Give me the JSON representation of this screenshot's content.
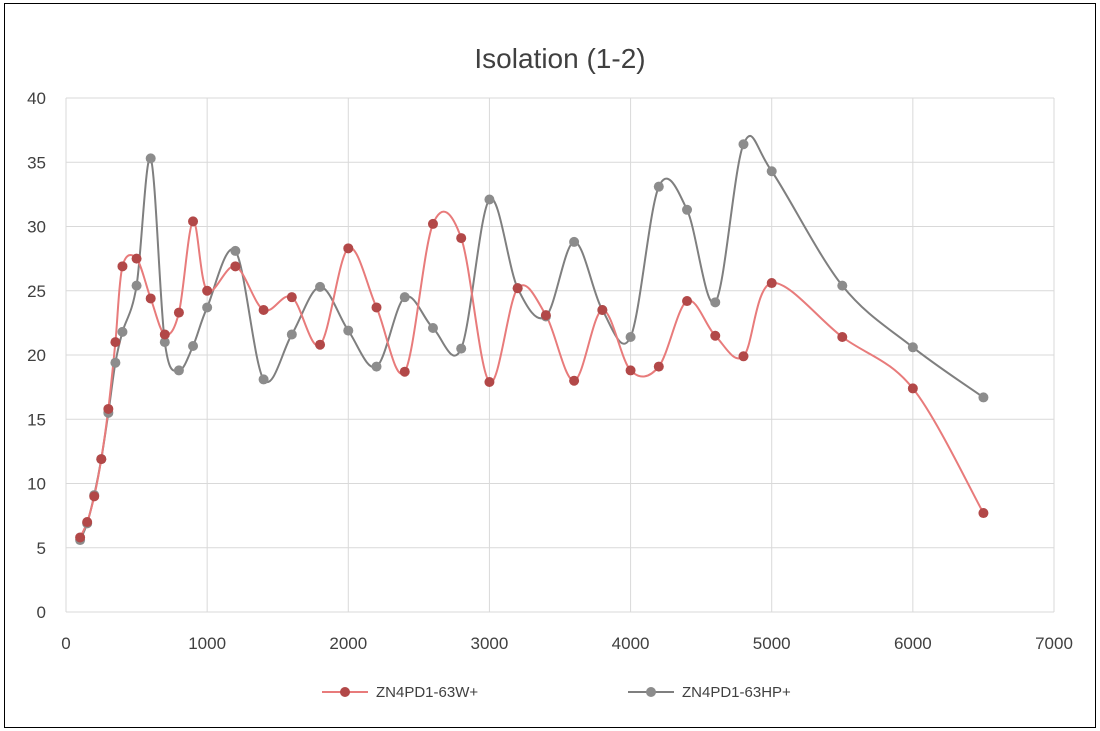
{
  "chart_data": {
    "type": "scatter",
    "title": "Isolation (1-2)",
    "xlabel": "",
    "ylabel": "",
    "xlim": [
      0,
      7000
    ],
    "ylim": [
      0,
      40
    ],
    "x_ticks": [
      0,
      1000,
      2000,
      3000,
      4000,
      5000,
      6000,
      7000
    ],
    "y_ticks": [
      0,
      5,
      10,
      15,
      20,
      25,
      30,
      35,
      40
    ],
    "grid": true,
    "legend_position": "bottom",
    "smooth_lines": true,
    "series": [
      {
        "name": "ZN4PD1-63W+",
        "color": "#e87b7b",
        "marker_color": "#b24848",
        "points": [
          [
            100,
            5.8
          ],
          [
            150,
            7.0
          ],
          [
            200,
            9.0
          ],
          [
            250,
            11.9
          ],
          [
            300,
            15.8
          ],
          [
            350,
            21.0
          ],
          [
            400,
            26.9
          ],
          [
            500,
            27.5
          ],
          [
            600,
            24.4
          ],
          [
            700,
            21.6
          ],
          [
            800,
            23.3
          ],
          [
            900,
            30.4
          ],
          [
            1000,
            25.0
          ],
          [
            1200,
            26.9
          ],
          [
            1400,
            23.5
          ],
          [
            1600,
            24.5
          ],
          [
            1800,
            20.8
          ],
          [
            2000,
            28.3
          ],
          [
            2200,
            23.7
          ],
          [
            2400,
            18.7
          ],
          [
            2600,
            30.2
          ],
          [
            2800,
            29.1
          ],
          [
            3000,
            17.9
          ],
          [
            3200,
            25.2
          ],
          [
            3400,
            23.1
          ],
          [
            3600,
            18.0
          ],
          [
            3800,
            23.5
          ],
          [
            4000,
            18.8
          ],
          [
            4200,
            19.1
          ],
          [
            4400,
            24.2
          ],
          [
            4600,
            21.5
          ],
          [
            4800,
            19.9
          ],
          [
            5000,
            25.6
          ],
          [
            5500,
            21.4
          ],
          [
            6000,
            17.4
          ],
          [
            6500,
            7.7
          ]
        ]
      },
      {
        "name": "ZN4PD1-63HP+",
        "color": "#7f7f7f",
        "marker_color": "#8c8c8c",
        "points": [
          [
            100,
            5.6
          ],
          [
            150,
            6.9
          ],
          [
            200,
            9.1
          ],
          [
            250,
            11.9
          ],
          [
            300,
            15.5
          ],
          [
            350,
            19.4
          ],
          [
            400,
            21.8
          ],
          [
            500,
            25.4
          ],
          [
            600,
            35.3
          ],
          [
            700,
            21.0
          ],
          [
            800,
            18.8
          ],
          [
            900,
            20.7
          ],
          [
            1000,
            23.7
          ],
          [
            1200,
            28.1
          ],
          [
            1400,
            18.1
          ],
          [
            1600,
            21.6
          ],
          [
            1800,
            25.3
          ],
          [
            2000,
            21.9
          ],
          [
            2200,
            19.1
          ],
          [
            2400,
            24.5
          ],
          [
            2600,
            22.1
          ],
          [
            2800,
            20.5
          ],
          [
            3000,
            32.1
          ],
          [
            3200,
            25.2
          ],
          [
            3400,
            23.0
          ],
          [
            3600,
            28.8
          ],
          [
            3800,
            23.5
          ],
          [
            4000,
            21.4
          ],
          [
            4200,
            33.1
          ],
          [
            4400,
            31.3
          ],
          [
            4600,
            24.1
          ],
          [
            4800,
            36.4
          ],
          [
            5000,
            34.3
          ],
          [
            5500,
            25.4
          ],
          [
            6000,
            20.6
          ],
          [
            6500,
            16.7
          ]
        ]
      }
    ]
  }
}
